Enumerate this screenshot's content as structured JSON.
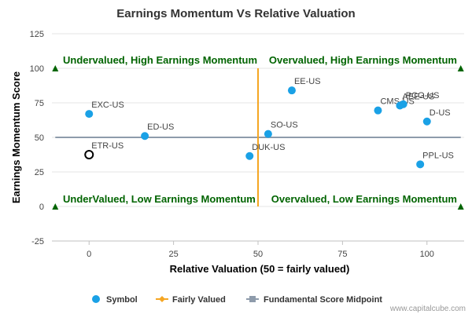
{
  "chart_data": {
    "type": "scatter",
    "title": "Earnings Momentum Vs Relative Valuation",
    "xlabel": "Relative Valuation (50 = fairly valued)",
    "ylabel": "Earnings Momentum Score",
    "xlim": [
      -11,
      111
    ],
    "ylim": [
      -25,
      125
    ],
    "x_ticks": [
      "0",
      "25",
      "50",
      "75",
      "100"
    ],
    "x_tick_values": [
      0,
      25,
      50,
      75,
      100
    ],
    "y_ticks": [
      "125",
      "100",
      "75",
      "50",
      "25",
      "0",
      "-25"
    ],
    "y_tick_values": [
      125,
      100,
      75,
      50,
      25,
      0,
      -25
    ],
    "grid": "horizontal",
    "points": [
      {
        "label": "EXC-US",
        "x": 0,
        "y": 67
      },
      {
        "label": "ED-US",
        "x": 16.5,
        "y": 51
      },
      {
        "label": "DUK-US",
        "x": 47.5,
        "y": 36.5
      },
      {
        "label": "SO-US",
        "x": 53,
        "y": 52.5
      },
      {
        "label": "EE-US",
        "x": 60,
        "y": 84
      },
      {
        "label": "CMS-US",
        "x": 85.5,
        "y": 69.5
      },
      {
        "label": "AEE-US",
        "x": 92,
        "y": 73
      },
      {
        "label": "PCG-US",
        "x": 93,
        "y": 74
      },
      {
        "label": "D-US",
        "x": 100,
        "y": 61.5
      },
      {
        "label": "PPL-US",
        "x": 98,
        "y": 30.5
      }
    ],
    "highlight": {
      "label": "ETR-US",
      "x": 0,
      "y": 37.5
    },
    "fair_value_line": 50,
    "midpoint_line": 50,
    "quadrant_labels": {
      "top_left": "Undervalued, High Earnings Momentum",
      "top_right": "Overvalued, High Earnings Momentum",
      "bottom_left": "UnderValued, Low Earnings Momentum",
      "bottom_right": "Overvalued, Low Earnings Momentum"
    },
    "legend": [
      "Symbol",
      "Fairly Valued",
      "Fundamental Score Midpoint"
    ],
    "legend_position": "bottom-center"
  },
  "credit": "www.capitalcube.com",
  "colors": {
    "points": "#1aa1e6",
    "fair_line": "#f5a623",
    "midpoint_line": "#8e9bab",
    "quadrant_text": "#006400",
    "grid": "#e6e6e6"
  }
}
